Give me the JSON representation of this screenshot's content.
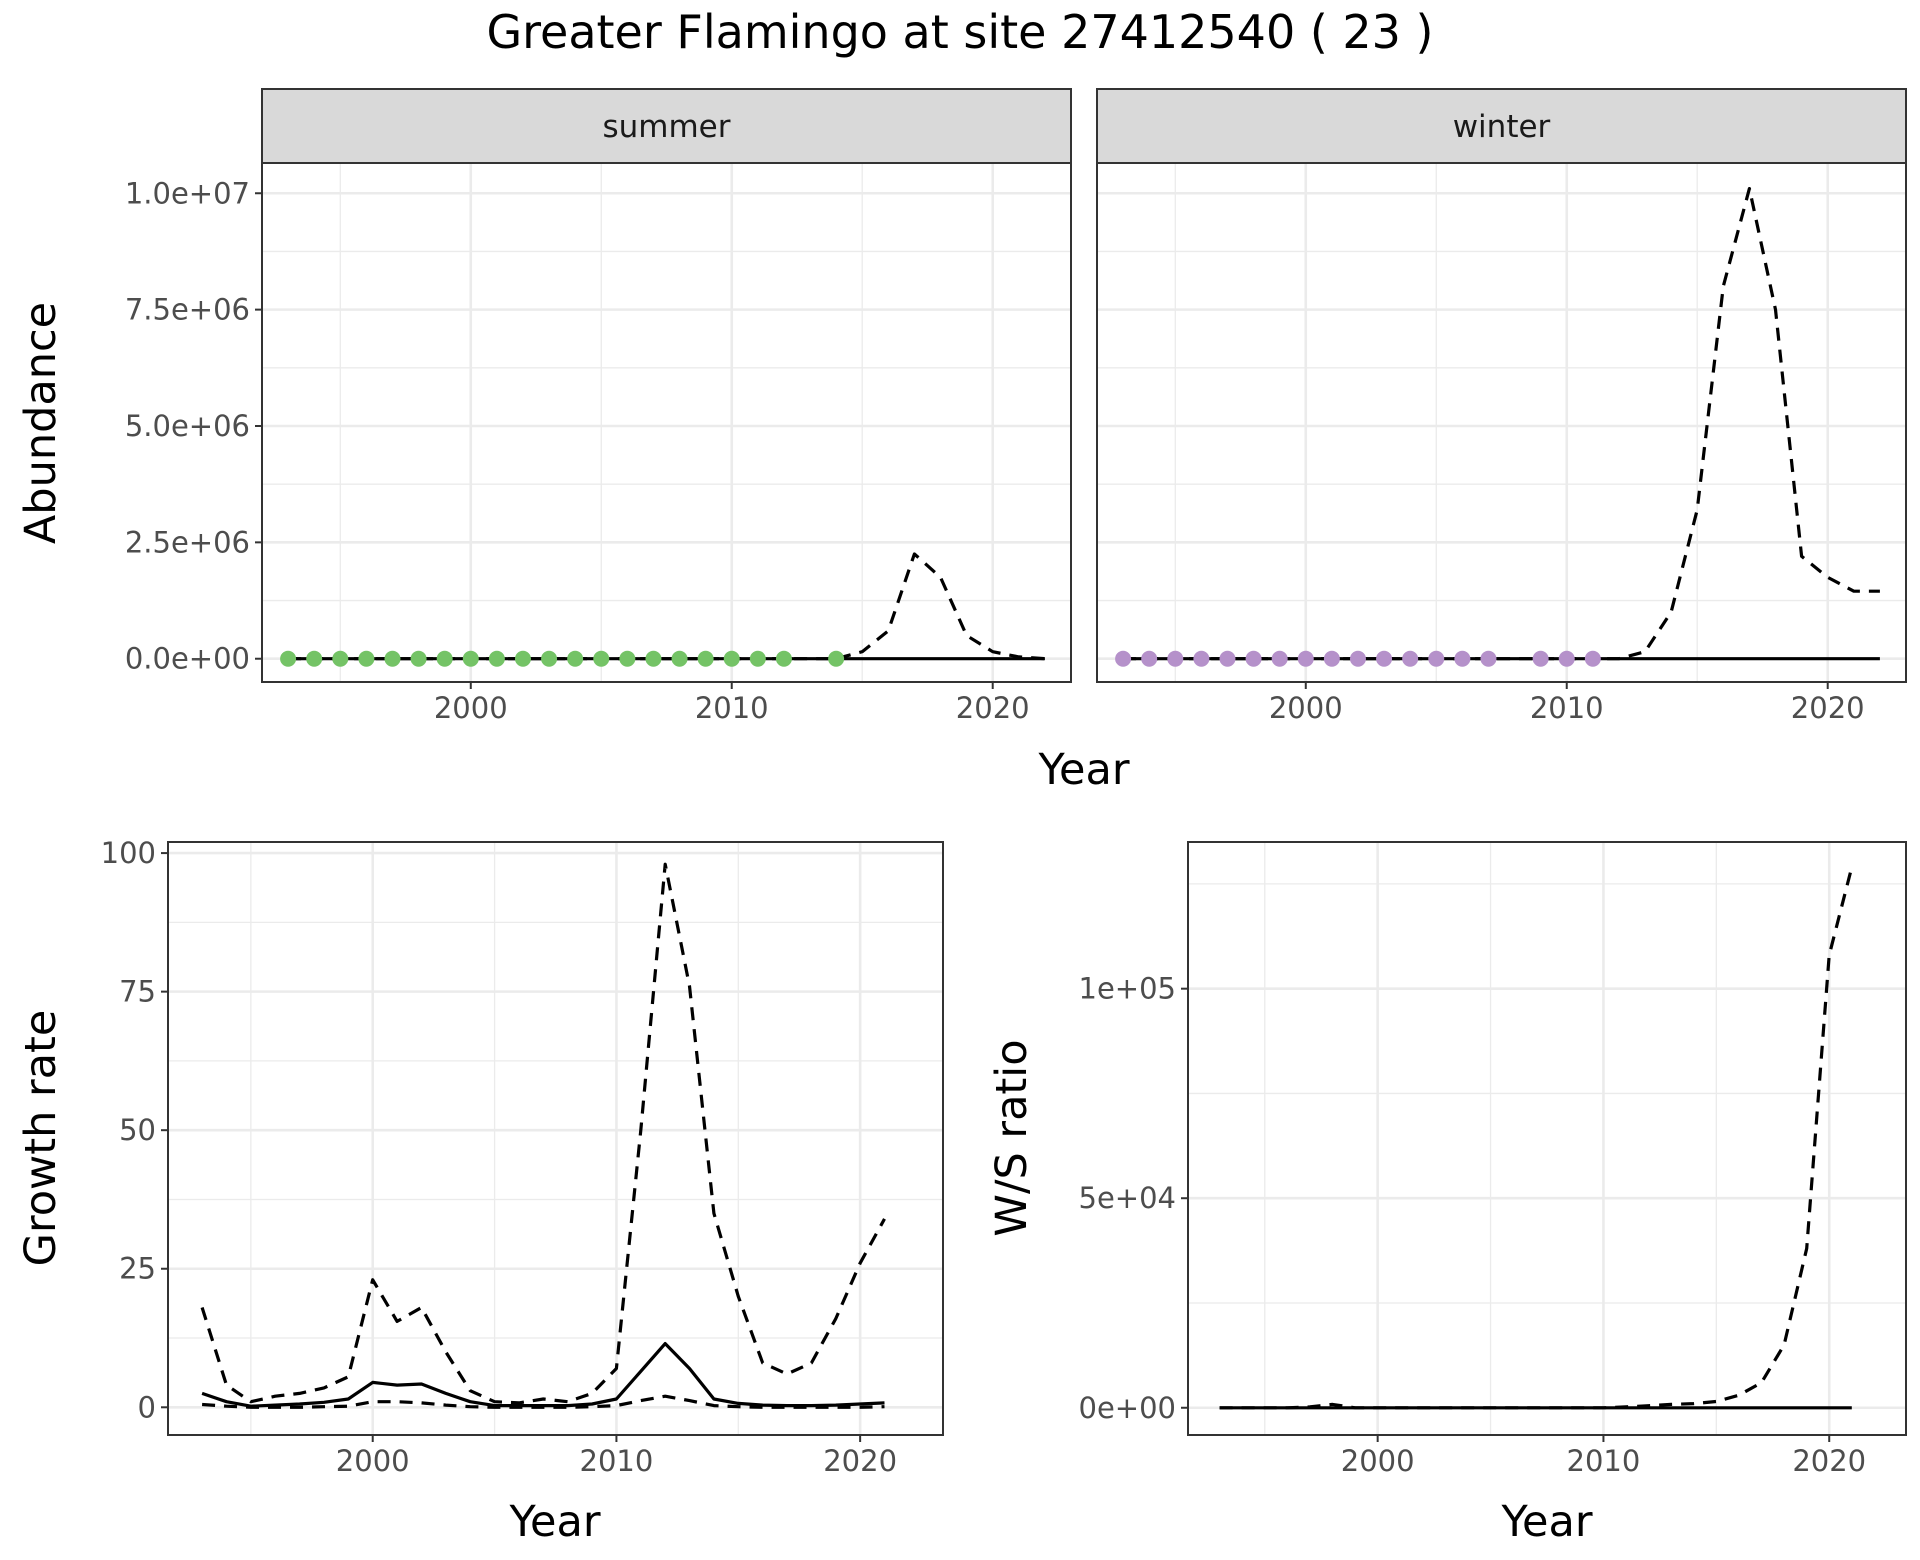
{
  "title": "Greater Flamingo at site 27412540 ( 23 )",
  "chart_data": [
    {
      "id": "abundance",
      "type": "line",
      "ylabel": "Abundance",
      "xlabel": "Year",
      "xlim": [
        1992,
        2023
      ],
      "ylim": [
        -500000,
        10650000
      ],
      "x_ticks": [
        2000,
        2010,
        2020
      ],
      "x_tick_labels": [
        "2000",
        "2010",
        "2020"
      ],
      "y_ticks": [
        0,
        2500000,
        5000000,
        7500000,
        10000000
      ],
      "y_tick_labels": [
        "0.0e+00",
        "2.5e+06",
        "5.0e+06",
        "7.5e+06",
        "1.0e+07"
      ],
      "grid": true,
      "facets": [
        {
          "strip": "summer",
          "point_color": "#74c366",
          "points": {
            "x": [
              1993,
              1994,
              1995,
              1996,
              1997,
              1998,
              1999,
              2000,
              2001,
              2002,
              2003,
              2004,
              2005,
              2006,
              2007,
              2008,
              2009,
              2010,
              2011,
              2012,
              2014
            ],
            "y": [
              0,
              0,
              0,
              0,
              0,
              0,
              0,
              0,
              0,
              0,
              0,
              0,
              0,
              0,
              0,
              0,
              0,
              0,
              0,
              0,
              0
            ]
          },
          "series": [
            {
              "style": "solid",
              "x": [
                1993,
                1994,
                1995,
                1996,
                1997,
                1998,
                1999,
                2000,
                2001,
                2002,
                2003,
                2004,
                2005,
                2006,
                2007,
                2008,
                2009,
                2010,
                2011,
                2012,
                2013,
                2014,
                2015,
                2016,
                2017,
                2018,
                2019,
                2020,
                2021,
                2022
              ],
              "y": [
                0,
                0,
                0,
                0,
                0,
                0,
                0,
                0,
                0,
                0,
                0,
                0,
                0,
                0,
                0,
                0,
                0,
                0,
                0,
                0,
                0,
                0,
                0,
                0,
                0,
                0,
                0,
                0,
                0,
                0
              ]
            },
            {
              "style": "dashed",
              "x": [
                1993,
                1994,
                1995,
                1996,
                1997,
                1998,
                1999,
                2000,
                2001,
                2002,
                2003,
                2004,
                2005,
                2006,
                2007,
                2008,
                2009,
                2010,
                2011,
                2012,
                2013,
                2014,
                2015,
                2016,
                2017,
                2018,
                2019,
                2020,
                2021,
                2022
              ],
              "y": [
                0,
                0,
                0,
                0,
                0,
                0,
                0,
                0,
                0,
                0,
                0,
                0,
                0,
                0,
                0,
                0,
                0,
                0,
                0,
                0,
                0,
                0,
                150000,
                600000,
                2250000,
                1750000,
                500000,
                150000,
                40000,
                0
              ]
            }
          ]
        },
        {
          "strip": "winter",
          "point_color": "#b591ca",
          "points": {
            "x": [
              1993,
              1994,
              1995,
              1996,
              1997,
              1998,
              1999,
              2000,
              2001,
              2002,
              2003,
              2004,
              2005,
              2006,
              2007,
              2009,
              2010,
              2011
            ],
            "y": [
              0,
              0,
              0,
              0,
              0,
              0,
              0,
              0,
              0,
              0,
              0,
              0,
              0,
              0,
              0,
              0,
              0,
              0
            ]
          },
          "series": [
            {
              "style": "solid",
              "x": [
                1993,
                1994,
                1995,
                1996,
                1997,
                1998,
                1999,
                2000,
                2001,
                2002,
                2003,
                2004,
                2005,
                2006,
                2007,
                2008,
                2009,
                2010,
                2011,
                2012,
                2013,
                2014,
                2015,
                2016,
                2017,
                2018,
                2019,
                2020,
                2021,
                2022
              ],
              "y": [
                0,
                0,
                0,
                0,
                0,
                0,
                0,
                0,
                0,
                0,
                0,
                0,
                0,
                0,
                0,
                0,
                0,
                0,
                0,
                0,
                0,
                0,
                0,
                0,
                0,
                0,
                0,
                0,
                0,
                0
              ]
            },
            {
              "style": "dashed",
              "x": [
                1993,
                1994,
                1995,
                1996,
                1997,
                1998,
                1999,
                2000,
                2001,
                2002,
                2003,
                2004,
                2005,
                2006,
                2007,
                2008,
                2009,
                2010,
                2011,
                2012,
                2013,
                2014,
                2015,
                2016,
                2017,
                2018,
                2019,
                2020,
                2021,
                2022
              ],
              "y": [
                0,
                0,
                0,
                0,
                0,
                0,
                0,
                0,
                0,
                0,
                0,
                0,
                0,
                0,
                0,
                0,
                0,
                0,
                0,
                0,
                150000,
                1000000,
                3200000,
                8000000,
                10100000,
                7500000,
                2200000,
                1750000,
                1450000,
                1450000
              ]
            }
          ]
        }
      ]
    },
    {
      "id": "growth",
      "type": "line",
      "ylabel": "Growth rate",
      "xlabel": "Year",
      "xlim": [
        1991.6,
        2023.4
      ],
      "ylim": [
        -5,
        102
      ],
      "x_ticks": [
        2000,
        2010,
        2020
      ],
      "x_tick_labels": [
        "2000",
        "2010",
        "2020"
      ],
      "y_ticks": [
        0,
        25,
        50,
        75,
        100
      ],
      "y_tick_labels": [
        "0",
        "25",
        "50",
        "75",
        "100"
      ],
      "grid": true,
      "series": [
        {
          "style": "dashed",
          "x": [
            1993,
            1994,
            1995,
            1996,
            1997,
            1998,
            1999,
            2000,
            2001,
            2002,
            2003,
            2004,
            2005,
            2006,
            2007,
            2008,
            2009,
            2010,
            2011,
            2012,
            2013,
            2014,
            2015,
            2016,
            2017,
            2018,
            2019,
            2020,
            2021
          ],
          "y": [
            18,
            4,
            1,
            2,
            2.5,
            3.5,
            5.5,
            23,
            15.5,
            18,
            10,
            3,
            1,
            0.8,
            1.5,
            1,
            2.5,
            7,
            50,
            98,
            76,
            35,
            20,
            8,
            6,
            8,
            16,
            26,
            34
          ]
        },
        {
          "style": "solid",
          "x": [
            1993,
            1994,
            1995,
            1996,
            1997,
            1998,
            1999,
            2000,
            2001,
            2002,
            2003,
            2004,
            2005,
            2006,
            2007,
            2008,
            2009,
            2010,
            2011,
            2012,
            2013,
            2014,
            2015,
            2016,
            2017,
            2018,
            2019,
            2020,
            2021
          ],
          "y": [
            2.5,
            1,
            0.2,
            0.4,
            0.6,
            0.9,
            1.5,
            4.5,
            4,
            4.2,
            2.5,
            1,
            0.3,
            0.3,
            0.3,
            0.3,
            0.6,
            1.5,
            6.5,
            11.5,
            7,
            1.5,
            0.7,
            0.4,
            0.3,
            0.3,
            0.4,
            0.6,
            0.8
          ]
        },
        {
          "style": "dashed",
          "x": [
            1993,
            1994,
            1995,
            1996,
            1997,
            1998,
            1999,
            2000,
            2001,
            2002,
            2003,
            2004,
            2005,
            2006,
            2007,
            2008,
            2009,
            2010,
            2011,
            2012,
            2013,
            2014,
            2015,
            2016,
            2017,
            2018,
            2019,
            2020,
            2021
          ],
          "y": [
            0.5,
            0.2,
            0,
            0,
            0,
            0.1,
            0.2,
            1,
            1,
            0.8,
            0.4,
            0.1,
            0,
            0,
            0,
            0,
            0.1,
            0.3,
            1.2,
            2,
            1.2,
            0.3,
            0.1,
            0,
            0,
            0,
            0,
            0,
            0.1
          ]
        }
      ]
    },
    {
      "id": "ratio",
      "type": "line",
      "ylabel": "W/S ratio",
      "xlabel": "Year",
      "xlim": [
        1991.6,
        2023.4
      ],
      "ylim": [
        -6500,
        135000
      ],
      "x_ticks": [
        2000,
        2010,
        2020
      ],
      "x_tick_labels": [
        "2000",
        "2010",
        "2020"
      ],
      "y_ticks": [
        0,
        50000,
        100000
      ],
      "y_tick_labels": [
        "0e+00",
        "5e+04",
        "1e+05"
      ],
      "grid": true,
      "series": [
        {
          "style": "dashed",
          "x": [
            1993,
            1994,
            1995,
            1996,
            1997,
            1998,
            1999,
            2000,
            2001,
            2002,
            2003,
            2004,
            2005,
            2006,
            2007,
            2008,
            2009,
            2010,
            2011,
            2012,
            2013,
            2014,
            2015,
            2016,
            2017,
            2018,
            2019,
            2020,
            2021
          ],
          "y": [
            0,
            0,
            0,
            0,
            200,
            800,
            0,
            0,
            0,
            0,
            0,
            0,
            0,
            0,
            0,
            0,
            0,
            0,
            200,
            500,
            800,
            1000,
            1500,
            3000,
            6000,
            15000,
            38000,
            108000,
            129000
          ]
        },
        {
          "style": "solid",
          "x": [
            1993,
            1994,
            1995,
            1996,
            1997,
            1998,
            1999,
            2000,
            2001,
            2002,
            2003,
            2004,
            2005,
            2006,
            2007,
            2008,
            2009,
            2010,
            2011,
            2012,
            2013,
            2014,
            2015,
            2016,
            2017,
            2018,
            2019,
            2020,
            2021
          ],
          "y": [
            0,
            0,
            0,
            0,
            0,
            0,
            0,
            0,
            0,
            0,
            0,
            0,
            0,
            0,
            0,
            0,
            0,
            0,
            0,
            0,
            0,
            0,
            0,
            0,
            0,
            0,
            0,
            0,
            0
          ]
        }
      ]
    }
  ]
}
